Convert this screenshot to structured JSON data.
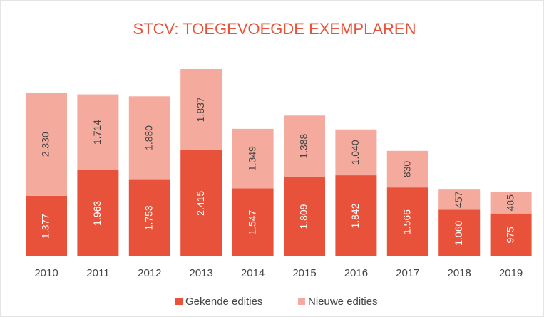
{
  "chart_data": {
    "type": "bar",
    "stacked": true,
    "title": "STCV: TOEGEVOEGDE EXEMPLAREN",
    "categories": [
      "2010",
      "2011",
      "2012",
      "2013",
      "2014",
      "2015",
      "2016",
      "2017",
      "2018",
      "2019"
    ],
    "series": [
      {
        "name": "Gekende edities",
        "color": "#e9523a",
        "values": [
          1377,
          1963,
          1753,
          2415,
          1547,
          1809,
          1842,
          1566,
          1060,
          975
        ],
        "value_labels": [
          "1.377",
          "1.963",
          "1.753",
          "2.415",
          "1.547",
          "1.809",
          "1.842",
          "1.566",
          "1.060",
          "975"
        ]
      },
      {
        "name": "Nieuwe edities",
        "color": "#f4ab9e",
        "values": [
          2330,
          1714,
          1880,
          1837,
          1349,
          1388,
          1040,
          830,
          457,
          485
        ],
        "value_labels": [
          "2.330",
          "1.714",
          "1.880",
          "1.837",
          "1.349",
          "1.388",
          "1.040",
          "830",
          "457",
          "485"
        ]
      }
    ],
    "legend": "bottom"
  }
}
